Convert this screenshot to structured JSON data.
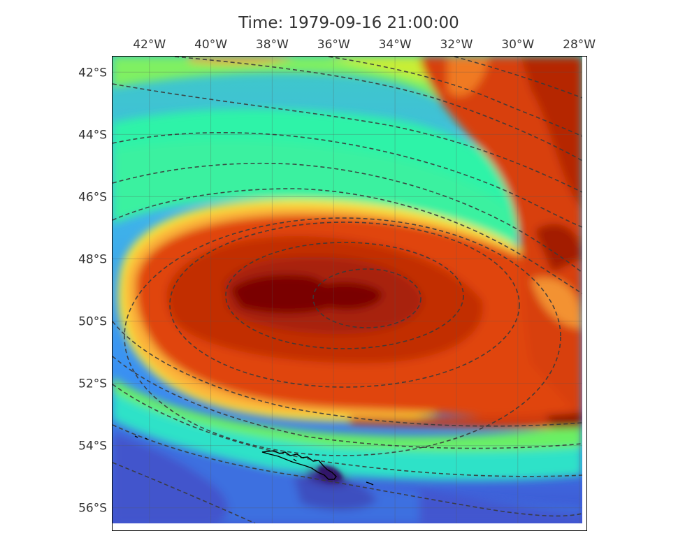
{
  "title": "Time: 1979-09-16 21:00:00",
  "map": {
    "type": "filled-contour-map",
    "projection": "PlateCarree",
    "extent": {
      "lon": [
        -43.2,
        -27.9
      ],
      "lat": [
        -56.5,
        -41.5
      ]
    },
    "colormap": "turbo",
    "colorbar": "none",
    "overlay": "dashed-isolines",
    "isoline_color": "#3a3a3a",
    "coastline_color": "#000000",
    "gridlines": true,
    "lon_ticks": [
      {
        "value": -42,
        "label": "42°W"
      },
      {
        "value": -40,
        "label": "40°W"
      },
      {
        "value": -38,
        "label": "38°W"
      },
      {
        "value": -36,
        "label": "36°W"
      },
      {
        "value": -34,
        "label": "34°W"
      },
      {
        "value": -32,
        "label": "32°W"
      },
      {
        "value": -30,
        "label": "30°W"
      },
      {
        "value": -28,
        "label": "28°W"
      }
    ],
    "lat_ticks": [
      {
        "value": -42,
        "label": "42°S"
      },
      {
        "value": -44,
        "label": "44°S"
      },
      {
        "value": -46,
        "label": "46°S"
      },
      {
        "value": -48,
        "label": "48°S"
      },
      {
        "value": -50,
        "label": "50°S"
      },
      {
        "value": -52,
        "label": "52°S"
      },
      {
        "value": -54,
        "label": "54°S"
      },
      {
        "value": -56,
        "label": "56°S"
      }
    ],
    "features": [
      {
        "name": "cyclone-core",
        "lon": -35.2,
        "lat": -49.1
      },
      {
        "name": "south-georgia-island",
        "lon": -36.8,
        "lat": -54.3
      }
    ]
  }
}
